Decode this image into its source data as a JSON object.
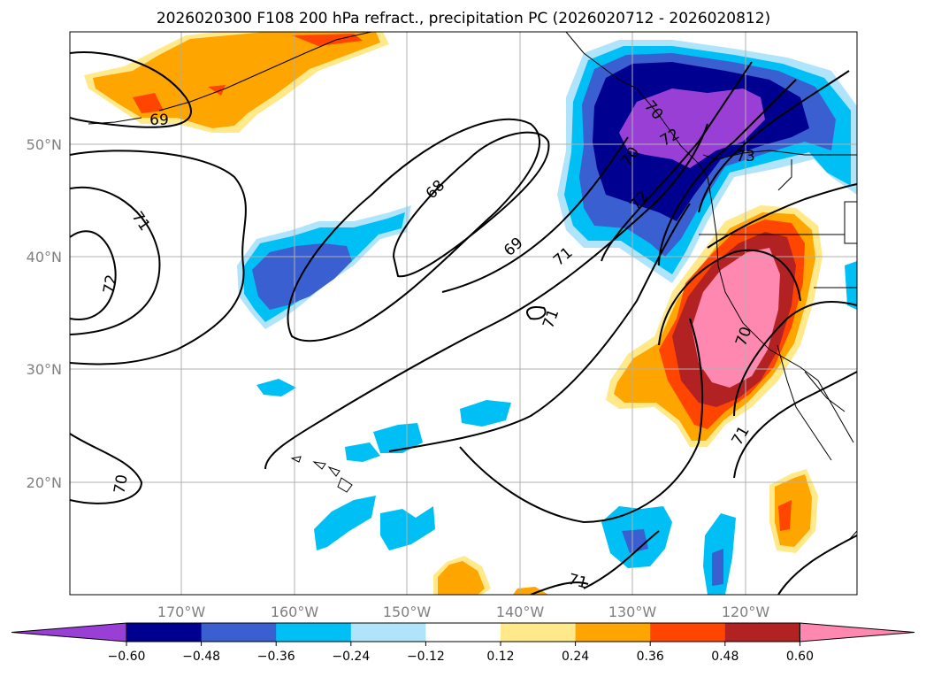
{
  "title": "2026020300 F108 200 hPa refract., precipitation PC (2026020712 - 2026020812)",
  "lat_labels": [
    "50°N",
    "40°N",
    "30°N",
    "20°N"
  ],
  "lon_labels": [
    "170°W",
    "160°W",
    "150°W",
    "140°W",
    "130°W",
    "120°W"
  ],
  "colorbar": {
    "colors": [
      "#9a3fd6",
      "#000090",
      "#3a5fd0",
      "#00bff5",
      "#b0e4fb",
      "#ffffff",
      "#ffe98a",
      "#ffa500",
      "#ff4500",
      "#b22222",
      "#ff88b0"
    ],
    "ticks": [
      "−0.60",
      "−0.48",
      "−0.36",
      "−0.24",
      "−0.12",
      "0.12",
      "0.24",
      "0.36",
      "0.48",
      "0.60"
    ]
  },
  "contour_labels": [
    "69",
    "68",
    "69",
    "71",
    "71",
    "72",
    "72",
    "70",
    "70",
    "72",
    "73",
    "71",
    "70",
    "71",
    "71",
    "70"
  ]
}
